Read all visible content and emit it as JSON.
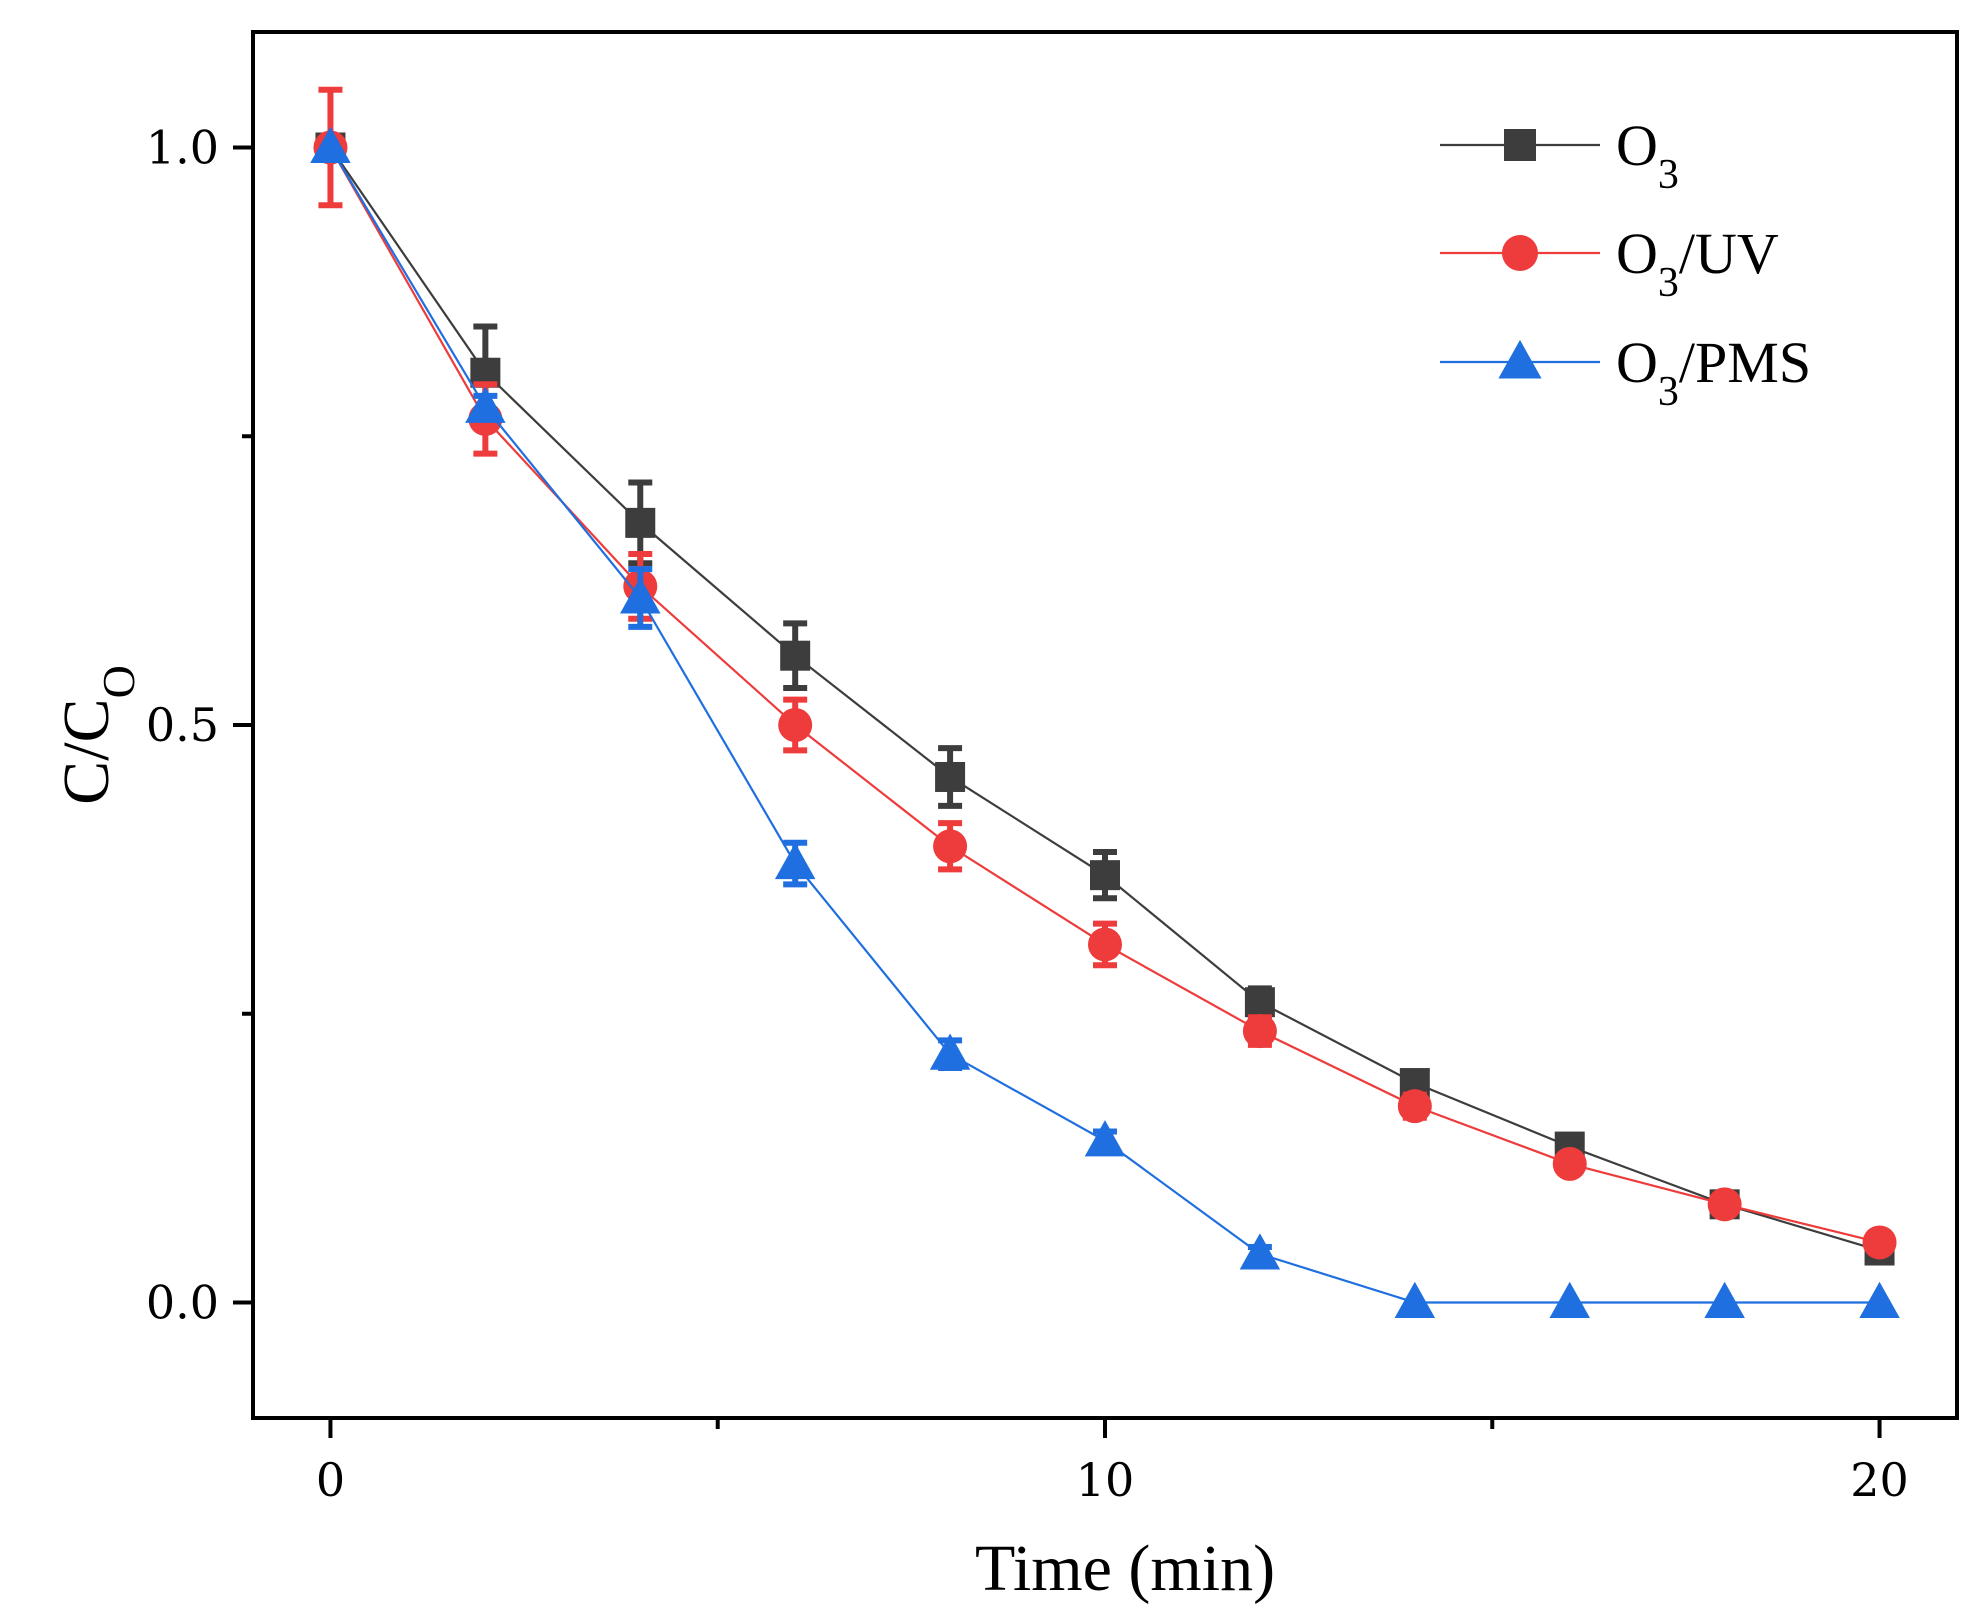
{
  "chart_data": {
    "type": "line",
    "xlabel": "Time (min)",
    "ylabel": "C/C",
    "ylabel_sub": "O",
    "xlim": [
      -1,
      21
    ],
    "ylim": [
      -0.1,
      1.1
    ],
    "xticks": [
      0,
      10,
      20
    ],
    "xticks_minor": [
      5,
      15
    ],
    "yticks": [
      0.0,
      0.5,
      1.0
    ],
    "yticks_minor": [
      0.25,
      0.75
    ],
    "ytick_labels": [
      "0.0",
      "0.5",
      "1.0"
    ],
    "grid": false,
    "legend_position": "top-right",
    "series": [
      {
        "name": "O",
        "name_sub": "3",
        "name_suffix": "",
        "color": "#3d3d3d",
        "marker": "square",
        "x": [
          0,
          2,
          4,
          6,
          8,
          10,
          12,
          14,
          16,
          18,
          20
        ],
        "y": [
          1.0,
          0.805,
          0.675,
          0.56,
          0.455,
          0.37,
          0.26,
          0.19,
          0.135,
          0.085,
          0.045
        ],
        "err": [
          0.0,
          0.04,
          0.035,
          0.028,
          0.025,
          0.02,
          0.012,
          0.01,
          0.008,
          0.006,
          0.005
        ]
      },
      {
        "name": "O",
        "name_sub": "3",
        "name_suffix": "/UV",
        "color": "#ee3b3b",
        "marker": "circle",
        "x": [
          0,
          2,
          4,
          6,
          8,
          10,
          12,
          14,
          16,
          18,
          20
        ],
        "y": [
          1.0,
          0.765,
          0.62,
          0.5,
          0.395,
          0.31,
          0.235,
          0.17,
          0.12,
          0.085,
          0.052
        ],
        "err": [
          0.05,
          0.03,
          0.028,
          0.022,
          0.02,
          0.018,
          0.012,
          0.01,
          0.008,
          0.006,
          0.005
        ]
      },
      {
        "name": "O",
        "name_sub": "3",
        "name_suffix": "/PMS",
        "color": "#1f6fe0",
        "marker": "triangle",
        "x": [
          0,
          2,
          4,
          6,
          8,
          10,
          12,
          14,
          16,
          18,
          20
        ],
        "y": [
          1.0,
          0.775,
          0.61,
          0.38,
          0.215,
          0.14,
          0.042,
          0.0,
          0.0,
          0.0,
          0.0
        ],
        "err": [
          0.0,
          0.01,
          0.025,
          0.018,
          0.012,
          0.008,
          0.006,
          0.0,
          0.0,
          0.0,
          0.0
        ]
      }
    ]
  }
}
